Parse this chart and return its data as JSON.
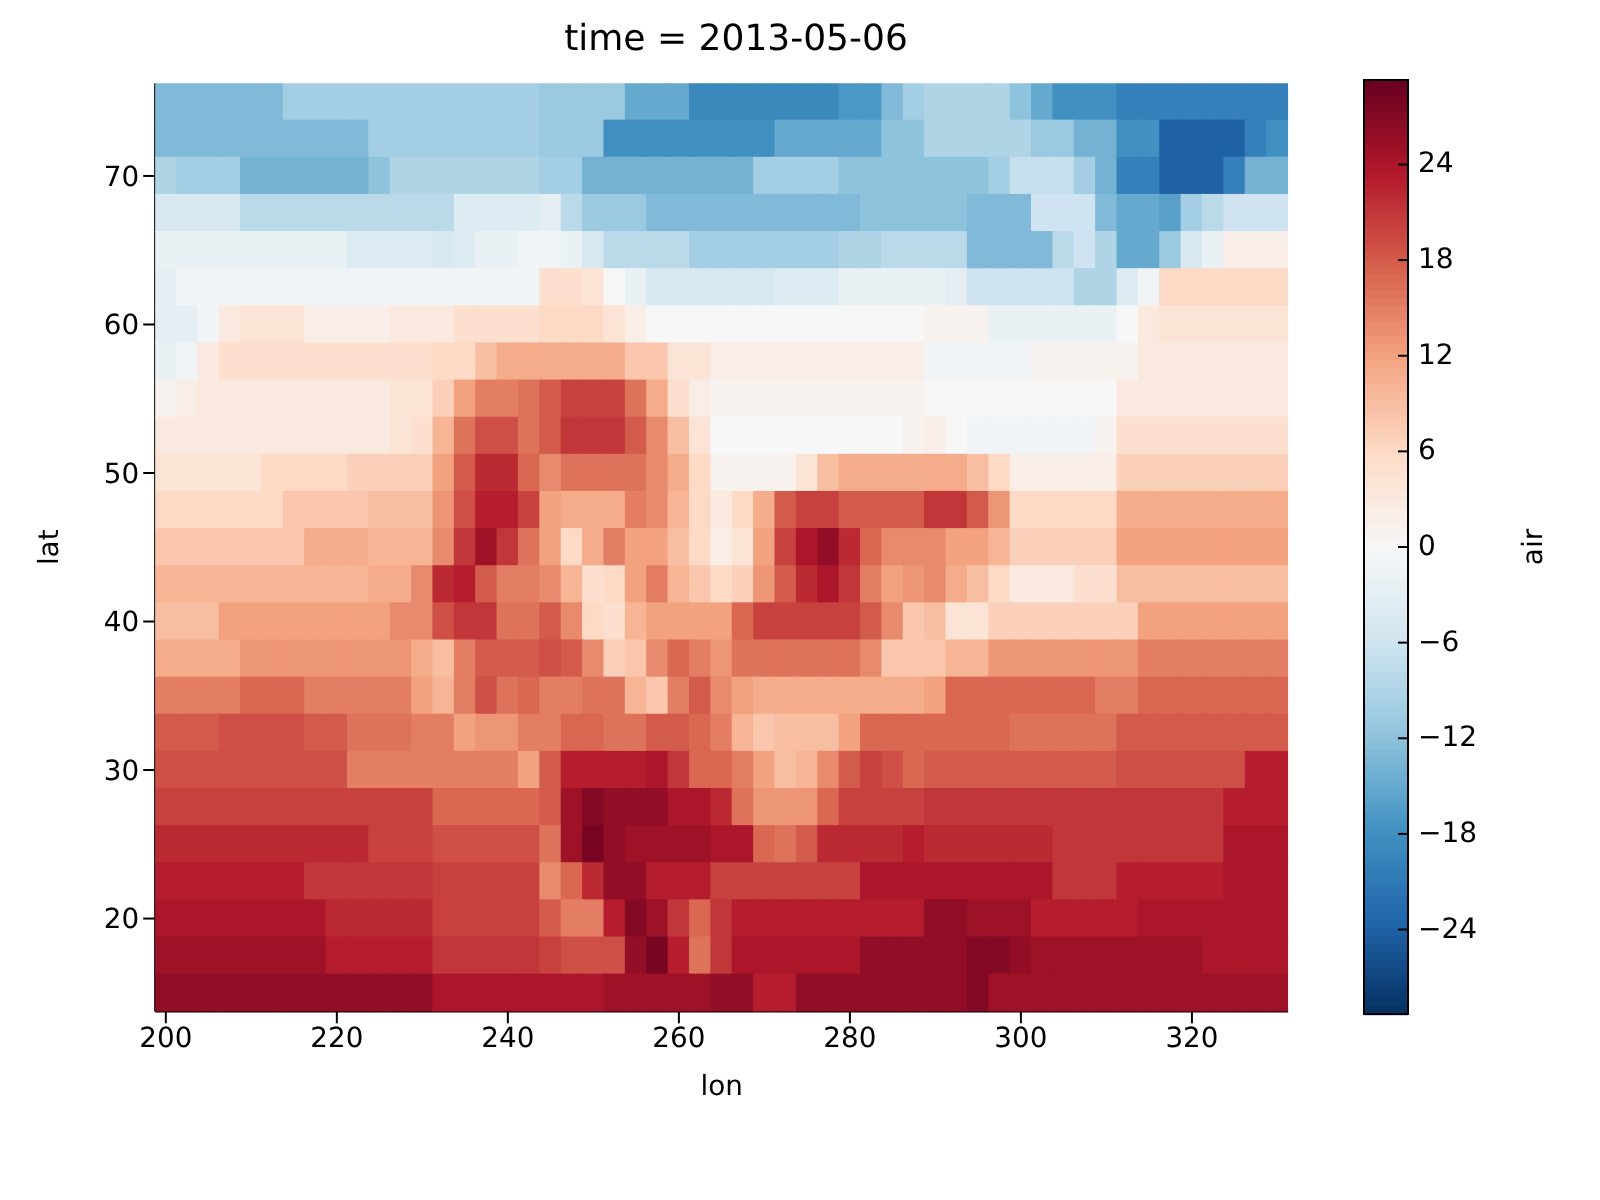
{
  "chart_data": {
    "type": "heatmap",
    "title": "time = 2013-05-06",
    "xlabel": "lon",
    "ylabel": "lat",
    "clabel": "air",
    "x": [
      200,
      202.5,
      205,
      207.5,
      210,
      212.5,
      215,
      217.5,
      220,
      222.5,
      225,
      227.5,
      230,
      232.5,
      235,
      237.5,
      240,
      242.5,
      245,
      247.5,
      250,
      252.5,
      255,
      257.5,
      260,
      262.5,
      265,
      267.5,
      270,
      272.5,
      275,
      277.5,
      280,
      282.5,
      285,
      287.5,
      290,
      292.5,
      295,
      297.5,
      300,
      302.5,
      305,
      307.5,
      310,
      312.5,
      315,
      317.5,
      320,
      322.5,
      325,
      327.5,
      330
    ],
    "y": [
      75,
      72.5,
      70,
      67.5,
      65,
      62.5,
      60,
      57.5,
      55,
      52.5,
      50,
      47.5,
      45,
      42.5,
      40,
      37.5,
      35,
      32.5,
      30,
      27.5,
      25,
      22.5,
      20,
      17.5,
      15
    ],
    "xlim": [
      198.75,
      331.25
    ],
    "xticks": [
      200,
      220,
      240,
      260,
      280,
      300,
      320
    ],
    "ylim": [
      13.75,
      76.25
    ],
    "yticks": [
      20,
      30,
      40,
      50,
      60,
      70
    ],
    "clim": [
      -29.3,
      29.3
    ],
    "cticks": [
      -24,
      -18,
      -12,
      -6,
      0,
      6,
      12,
      18,
      24
    ],
    "cells": [
      [
        -13,
        -13,
        -13,
        -13,
        -13,
        -13,
        -10,
        -10,
        -10,
        -10,
        -10,
        -10,
        -10,
        -10,
        -10,
        -10,
        -10,
        -10,
        -11,
        -11,
        -11,
        -11,
        -15,
        -15,
        -15,
        -19,
        -19,
        -19,
        -19,
        -19,
        -19,
        -19,
        -17,
        -17,
        -13,
        -10,
        -9,
        -9,
        -9,
        -9,
        -12,
        -15,
        -18,
        -18,
        -18,
        -20,
        -20,
        -20,
        -20,
        -20,
        -20,
        -20,
        -20
      ],
      [
        -13,
        -13,
        -13,
        -13,
        -13,
        -13,
        -13,
        -13,
        -13,
        -13,
        -10,
        -10,
        -10,
        -10,
        -10,
        -10,
        -10,
        -10,
        -11,
        -11,
        -11,
        -18,
        -18,
        -18,
        -18,
        -18,
        -18,
        -18,
        -18,
        -15,
        -15,
        -15,
        -15,
        -15,
        -12,
        -12,
        -9,
        -9,
        -9,
        -9,
        -9,
        -11,
        -11,
        -14,
        -14,
        -18,
        -18,
        -24,
        -24,
        -24,
        -24,
        -20,
        -18
      ],
      [
        -9,
        -10,
        -10,
        -10,
        -14,
        -14,
        -14,
        -14,
        -14,
        -14,
        -12,
        -9,
        -9,
        -9,
        -9,
        -9,
        -9,
        -9,
        -10,
        -10,
        -14,
        -14,
        -14,
        -14,
        -14,
        -14,
        -14,
        -14,
        -10,
        -10,
        -10,
        -10,
        -12,
        -12,
        -12,
        -12,
        -12,
        -12,
        -12,
        -10,
        -7,
        -7,
        -7,
        -10,
        -14,
        -20,
        -20,
        -24,
        -24,
        -24,
        -20,
        -14,
        -14
      ],
      [
        -5,
        -5,
        -5,
        -5,
        -8,
        -8,
        -8,
        -8,
        -8,
        -8,
        -8,
        -8,
        -8,
        -8,
        -4,
        -4,
        -4,
        -4,
        -3,
        -8,
        -11,
        -11,
        -11,
        -13,
        -13,
        -13,
        -13,
        -13,
        -13,
        -13,
        -13,
        -13,
        -13,
        -12,
        -12,
        -12,
        -12,
        -12,
        -13,
        -13,
        -13,
        -6,
        -6,
        -6,
        -13,
        -15,
        -15,
        -16,
        -10,
        -8,
        -6,
        -6,
        -6
      ],
      [
        -2,
        -2,
        -2,
        -2,
        -2,
        -2,
        -2,
        -2,
        -2,
        -4,
        -4,
        -4,
        -4,
        -5,
        -4,
        -2,
        -2,
        -1,
        -1,
        -2,
        -5,
        -8,
        -8,
        -8,
        -8,
        -10,
        -10,
        -10,
        -10,
        -10,
        -10,
        -10,
        -9,
        -9,
        -8,
        -8,
        -8,
        -8,
        -13,
        -13,
        -13,
        -13,
        -8,
        -6,
        -9,
        -15,
        -15,
        -11,
        -5,
        -2,
        2,
        2,
        2
      ],
      [
        -3,
        -1,
        -1,
        -1,
        -1,
        -1,
        -1,
        -1,
        -1,
        -1,
        -1,
        -1,
        -1,
        -1,
        -1,
        -1,
        -1,
        -1,
        5,
        5,
        4,
        0,
        -2,
        -5,
        -5,
        -5,
        -5,
        -5,
        -5,
        -4,
        -4,
        -4,
        -2,
        -2,
        -2,
        -2,
        -2,
        -3,
        -6,
        -6,
        -6,
        -6,
        -6,
        -9,
        -9,
        -4,
        -1,
        6,
        6,
        6,
        6,
        6,
        6
      ],
      [
        -3,
        -3,
        -1,
        3,
        4,
        4,
        4,
        2,
        2,
        2,
        2,
        3,
        3,
        3,
        5,
        5,
        5,
        5,
        6,
        6,
        6,
        4,
        2,
        0,
        0,
        0,
        0,
        0,
        0,
        0,
        0,
        0,
        0,
        0,
        0,
        0,
        1,
        1,
        1,
        -2,
        -2,
        -2,
        -2,
        -2,
        -2,
        0,
        3,
        4,
        4,
        4,
        4,
        4,
        4
      ],
      [
        -2,
        -1,
        3,
        5,
        5,
        5,
        5,
        5,
        5,
        5,
        5,
        5,
        5,
        6,
        6,
        9,
        11,
        11,
        11,
        11,
        11,
        11,
        8,
        8,
        4,
        4,
        2,
        2,
        2,
        2,
        2,
        2,
        2,
        2,
        2,
        2,
        -1,
        -1,
        -1,
        -1,
        -1,
        1,
        1,
        1,
        1,
        1,
        3,
        3,
        3,
        3,
        3,
        3,
        3
      ],
      [
        1,
        2,
        3,
        3,
        3,
        3,
        3,
        3,
        3,
        3,
        3,
        4,
        4,
        7,
        12,
        15,
        15,
        16,
        18,
        20,
        20,
        20,
        16,
        11,
        5,
        2,
        1,
        1,
        1,
        1,
        1,
        1,
        1,
        1,
        1,
        1,
        0,
        0,
        0,
        0,
        0,
        0,
        0,
        0,
        0,
        3,
        3,
        3,
        3,
        3,
        3,
        3,
        3
      ],
      [
        3,
        3,
        3,
        3,
        3,
        3,
        3,
        3,
        3,
        3,
        3,
        4,
        5,
        10,
        16,
        19,
        19,
        16,
        18,
        21,
        21,
        21,
        18,
        14,
        9,
        4,
        0,
        0,
        0,
        0,
        0,
        0,
        0,
        0,
        0,
        1,
        2,
        0,
        -1,
        -1,
        -1,
        -1,
        -1,
        -1,
        1,
        5,
        5,
        5,
        5,
        5,
        5,
        5,
        5
      ],
      [
        4,
        4,
        4,
        4,
        4,
        6,
        6,
        6,
        6,
        7,
        7,
        7,
        7,
        12,
        18,
        22,
        22,
        17,
        14,
        16,
        16,
        16,
        16,
        14,
        11,
        6,
        1,
        1,
        1,
        1,
        4,
        9,
        11,
        11,
        11,
        11,
        11,
        11,
        9,
        6,
        2,
        2,
        2,
        2,
        2,
        7,
        7,
        7,
        7,
        7,
        7,
        7,
        7
      ],
      [
        6,
        6,
        6,
        6,
        6,
        6,
        8,
        8,
        8,
        8,
        9,
        9,
        9,
        13,
        19,
        23,
        23,
        20,
        12,
        11,
        11,
        11,
        15,
        14,
        10,
        6,
        3,
        6,
        11,
        18,
        20,
        20,
        18,
        18,
        18,
        18,
        21,
        21,
        18,
        13,
        6,
        6,
        6,
        6,
        6,
        11,
        11,
        11,
        11,
        11,
        11,
        11,
        11
      ],
      [
        8,
        8,
        8,
        8,
        8,
        8,
        8,
        11,
        11,
        11,
        10,
        10,
        10,
        14,
        21,
        25,
        21,
        16,
        12,
        6,
        11,
        15,
        12,
        12,
        9,
        6,
        2,
        4,
        12,
        20,
        24,
        26,
        22,
        17,
        14,
        14,
        14,
        12,
        12,
        10,
        7,
        7,
        7,
        7,
        7,
        12,
        12,
        12,
        12,
        12,
        12,
        12,
        12
      ],
      [
        10,
        10,
        10,
        10,
        10,
        10,
        10,
        10,
        10,
        10,
        11,
        11,
        14,
        22,
        23,
        18,
        15,
        15,
        14,
        10,
        5,
        6,
        12,
        15,
        10,
        8,
        6,
        7,
        13,
        18,
        22,
        24,
        21,
        15,
        12,
        13,
        14,
        11,
        9,
        6,
        3,
        3,
        3,
        5,
        5,
        9,
        9,
        9,
        9,
        9,
        9,
        9,
        9
      ],
      [
        9,
        9,
        9,
        12,
        12,
        12,
        12,
        12,
        12,
        12,
        12,
        14,
        14,
        19,
        21,
        21,
        16,
        16,
        18,
        14,
        6,
        5,
        10,
        12,
        12,
        12,
        12,
        17,
        20,
        20,
        20,
        20,
        20,
        18,
        14,
        8,
        9,
        4,
        4,
        7,
        7,
        7,
        7,
        7,
        7,
        7,
        12,
        12,
        12,
        12,
        12,
        12,
        12
      ],
      [
        11,
        11,
        11,
        11,
        13,
        13,
        13,
        13,
        13,
        13,
        13,
        13,
        11,
        9,
        15,
        18,
        18,
        18,
        19,
        18,
        14,
        7,
        8,
        14,
        17,
        15,
        13,
        16,
        16,
        16,
        16,
        16,
        16,
        14,
        8,
        8,
        8,
        10,
        10,
        13,
        13,
        13,
        13,
        13,
        13,
        13,
        15,
        15,
        15,
        15,
        15,
        15,
        15
      ],
      [
        15,
        15,
        15,
        15,
        17,
        17,
        17,
        15,
        15,
        15,
        15,
        15,
        12,
        10,
        15,
        19,
        16,
        17,
        15,
        15,
        16,
        16,
        10,
        8,
        15,
        18,
        14,
        12,
        11,
        11,
        11,
        11,
        11,
        11,
        11,
        11,
        12,
        17,
        17,
        17,
        17,
        17,
        17,
        17,
        15,
        15,
        17,
        17,
        17,
        17,
        17,
        17,
        17
      ],
      [
        18,
        18,
        18,
        19,
        19,
        19,
        19,
        18,
        18,
        16,
        16,
        16,
        15,
        15,
        12,
        13,
        13,
        15,
        15,
        17,
        17,
        16,
        16,
        18,
        18,
        17,
        15,
        10,
        8,
        9,
        9,
        9,
        12,
        17,
        17,
        17,
        17,
        17,
        17,
        17,
        16,
        16,
        16,
        16,
        16,
        18,
        18,
        18,
        18,
        18,
        18,
        18,
        18
      ],
      [
        19,
        19,
        19,
        19,
        19,
        19,
        19,
        19,
        19,
        15,
        15,
        15,
        15,
        15,
        15,
        15,
        15,
        12,
        18,
        23,
        23,
        23,
        23,
        24,
        21,
        17,
        17,
        15,
        12,
        9,
        10,
        14,
        18,
        20,
        19,
        17,
        18,
        18,
        18,
        18,
        18,
        18,
        18,
        18,
        18,
        19,
        19,
        19,
        19,
        19,
        19,
        23,
        23
      ],
      [
        20,
        20,
        20,
        20,
        20,
        20,
        20,
        20,
        20,
        20,
        20,
        20,
        20,
        17,
        17,
        17,
        17,
        17,
        18,
        25,
        27,
        26,
        26,
        26,
        24,
        24,
        22,
        16,
        13,
        13,
        13,
        17,
        20,
        20,
        20,
        20,
        21,
        21,
        21,
        21,
        21,
        21,
        21,
        21,
        21,
        21,
        21,
        21,
        21,
        21,
        23,
        23,
        23
      ],
      [
        22,
        22,
        22,
        22,
        22,
        22,
        22,
        22,
        22,
        22,
        20,
        20,
        20,
        19,
        19,
        19,
        19,
        19,
        16,
        25,
        28,
        26,
        25,
        25,
        25,
        25,
        24,
        24,
        17,
        16,
        18,
        22,
        22,
        22,
        22,
        23,
        22,
        22,
        22,
        22,
        22,
        22,
        21,
        21,
        21,
        21,
        21,
        21,
        21,
        21,
        24,
        24,
        24
      ],
      [
        23,
        23,
        23,
        23,
        23,
        23,
        23,
        21,
        21,
        21,
        21,
        21,
        21,
        20,
        20,
        20,
        20,
        20,
        14,
        17,
        22,
        26,
        26,
        23,
        23,
        23,
        20,
        20,
        20,
        20,
        20,
        20,
        20,
        24,
        24,
        24,
        24,
        24,
        24,
        24,
        24,
        24,
        21,
        21,
        21,
        23,
        23,
        23,
        23,
        23,
        24,
        24,
        24
      ],
      [
        24,
        24,
        24,
        24,
        24,
        24,
        24,
        24,
        22,
        22,
        22,
        22,
        22,
        20,
        20,
        20,
        20,
        20,
        18,
        15,
        15,
        23,
        27,
        25,
        21,
        17,
        21,
        23,
        23,
        23,
        23,
        23,
        23,
        23,
        23,
        23,
        26,
        26,
        25,
        25,
        25,
        23,
        23,
        23,
        23,
        23,
        24,
        24,
        24,
        24,
        24,
        24,
        24
      ],
      [
        25,
        25,
        25,
        25,
        25,
        25,
        25,
        25,
        23,
        23,
        23,
        23,
        23,
        21,
        21,
        21,
        21,
        21,
        20,
        19,
        19,
        19,
        26,
        28,
        23,
        16,
        21,
        24,
        24,
        24,
        24,
        24,
        24,
        26,
        26,
        26,
        26,
        26,
        27,
        27,
        26,
        25,
        25,
        25,
        25,
        25,
        25,
        25,
        25,
        24,
        24,
        24,
        24
      ],
      [
        26,
        26,
        26,
        26,
        26,
        26,
        26,
        26,
        26,
        26,
        26,
        26,
        26,
        24,
        24,
        24,
        24,
        24,
        24,
        24,
        24,
        25,
        25,
        25,
        25,
        25,
        26,
        26,
        23,
        23,
        26,
        26,
        26,
        26,
        26,
        26,
        26,
        26,
        27,
        25,
        25,
        25,
        25,
        25,
        25,
        25,
        25,
        25,
        25,
        25,
        25,
        25,
        25
      ]
    ]
  }
}
